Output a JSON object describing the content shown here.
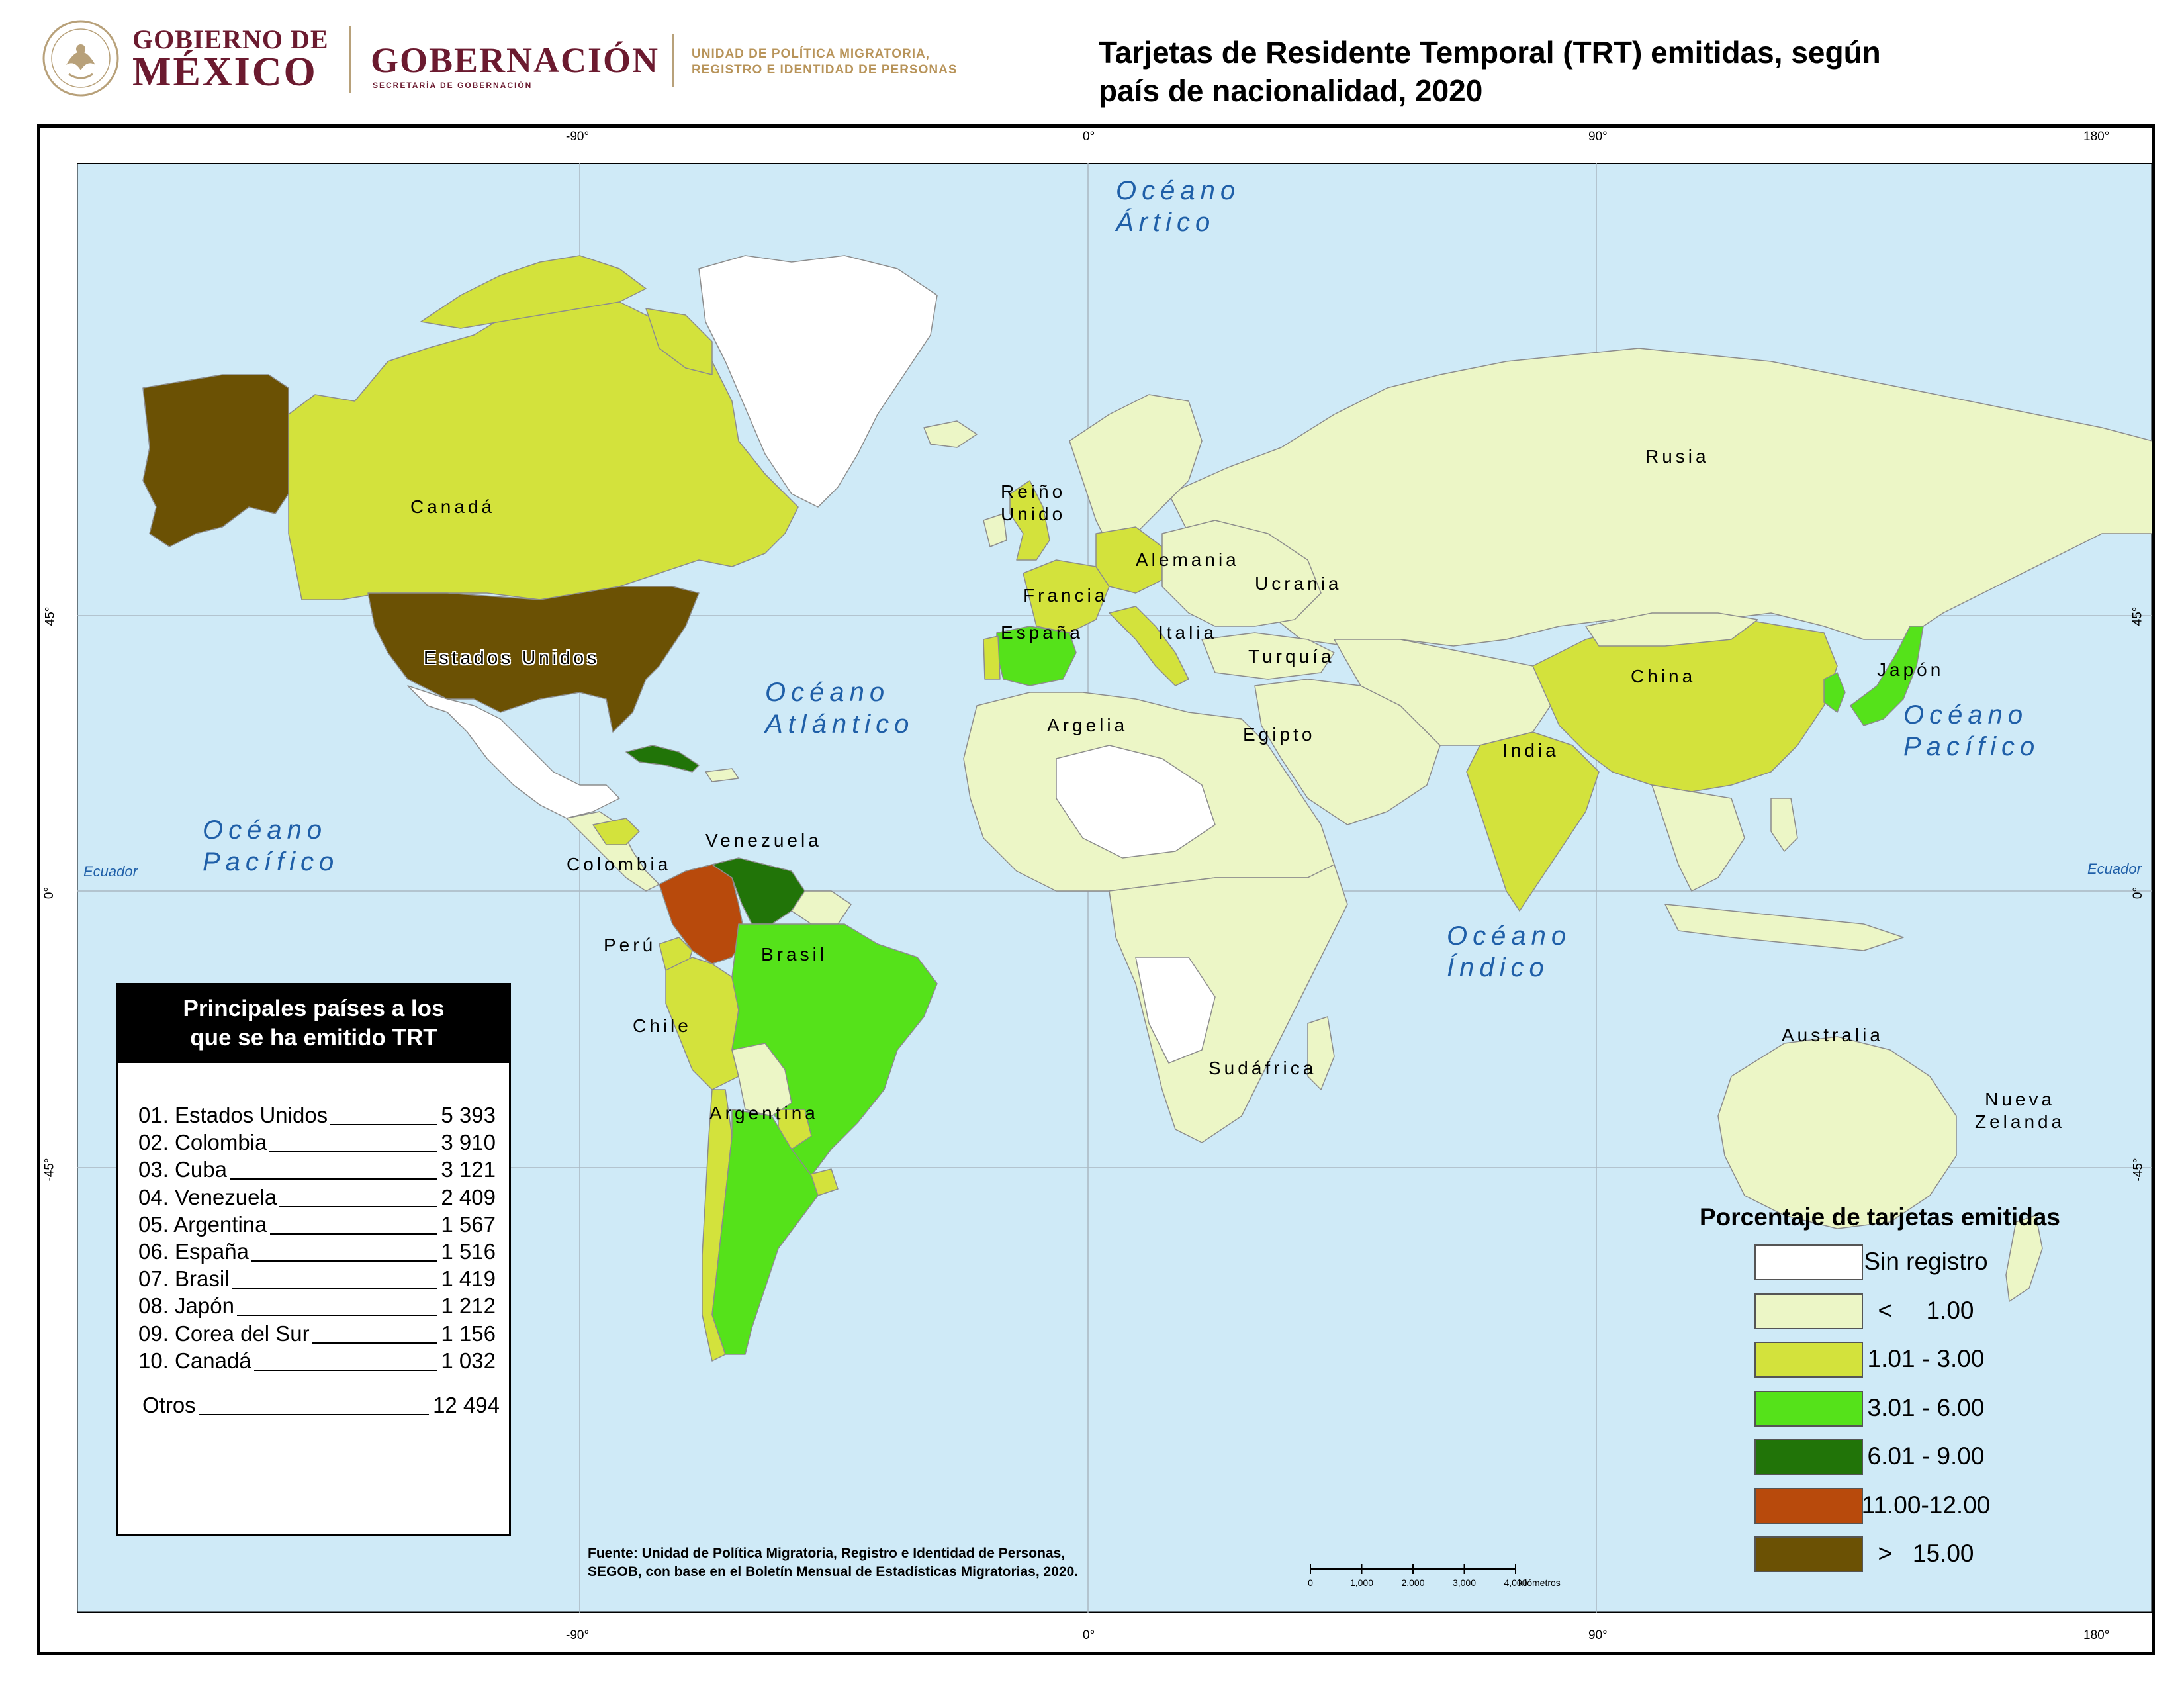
{
  "header": {
    "gob_line1": "GOBIERNO DE",
    "gob_line2": "MÉXICO",
    "gobernacion": "GOBERNACIÓN",
    "gobernacion_sub": "SECRETARÍA DE GOBERNACIÓN",
    "unidad_line1": "UNIDAD DE POLÍTICA MIGRATORIA,",
    "unidad_line2": "REGISTRO E IDENTIDAD DE PERSONAS",
    "title_line1": "Tarjetas de Residente Temporal (TRT) emitidas, según",
    "title_line2": "país de nacionalidad, 2020"
  },
  "graticule": {
    "top_ticks": [
      "-90°",
      "0°",
      "90°",
      "180°"
    ],
    "bottom_ticks": [
      "-90°",
      "0°",
      "90°",
      "180°"
    ],
    "left_ticks": [
      "45°",
      "0°",
      "-45°"
    ],
    "right_ticks": [
      "45°",
      "0°",
      "-45°"
    ],
    "ecuador": "Ecuador"
  },
  "oceans": {
    "artico": [
      "Océano",
      "Ártico"
    ],
    "atlantico": [
      "Océano",
      "Atlántico"
    ],
    "pacifico_w": [
      "Océano",
      "Pacífico"
    ],
    "pacifico_e": [
      "Océano",
      "Pacífico"
    ],
    "indico": [
      "Océano",
      "Índico"
    ]
  },
  "countries": {
    "canada": "Canadá",
    "estados_unidos": "Estados Unidos",
    "reino_unido_1": "Reiño",
    "reino_unido_2": "Unido",
    "alemania": "Alemania",
    "francia": "Francia",
    "espana": "España",
    "italia": "Italia",
    "ucrania": "Ucrania",
    "turquia": "Turquía",
    "rusia": "Rusia",
    "china": "China",
    "japon": "Japón",
    "india": "India",
    "egipto": "Egipto",
    "argelia": "Argelia",
    "venezuela": "Venezuela",
    "colombia": "Colombia",
    "peru": "Perú",
    "brasil": "Brasil",
    "chile": "Chile",
    "argentina": "Argentina",
    "sudafrica": "Sudáfrica",
    "australia": "Australia",
    "nueva_zelanda_1": "Nueva",
    "nueva_zelanda_2": "Zelanda"
  },
  "ranking": {
    "title_line1": "Principales países a los",
    "title_line2": "que se ha emitido TRT",
    "rows": [
      {
        "name": "01. Estados Unidos",
        "value": "5 393"
      },
      {
        "name": "02. Colombia",
        "value": "3 910"
      },
      {
        "name": "03. Cuba",
        "value": "3 121"
      },
      {
        "name": "04. Venezuela",
        "value": "2 409"
      },
      {
        "name": "05. Argentina",
        "value": "1 567"
      },
      {
        "name": "06. España",
        "value": "1 516"
      },
      {
        "name": "07. Brasil",
        "value": "1 419"
      },
      {
        "name": "08. Japón",
        "value": "1 212"
      },
      {
        "name": "09. Corea del Sur",
        "value": "1 156"
      },
      {
        "name": "10. Canadá",
        "value": "1 032"
      }
    ],
    "otros": {
      "name": "Otros",
      "value": "12 494"
    }
  },
  "legend": {
    "title": "Porcentaje de tarjetas emitidas",
    "classes": [
      {
        "label": "Sin registro",
        "color": "#ffffff"
      },
      {
        "label": "<     1.00",
        "color": "#ecf6c6"
      },
      {
        "label": "1.01 - 3.00",
        "color": "#d3e23c"
      },
      {
        "label": "3.01 - 6.00",
        "color": "#55e21a"
      },
      {
        "label": "6.01 - 9.00",
        "color": "#217408"
      },
      {
        "label": "11.00-12.00",
        "color": "#b84a0c"
      },
      {
        "label": ">   15.00",
        "color": "#6b5104"
      }
    ]
  },
  "colors": {
    "ocean": "#cfeaf7",
    "land_default": "#ecf6c6",
    "border": "#8c8c8c",
    "ocean_label": "#1f5fa8"
  },
  "source": {
    "line1": "Fuente: Unidad de Política Migratoria, Registro e Identidad de Personas,",
    "line2": "SEGOB, con base en el Boletín Mensual de Estadísticas Migratorias, 2020."
  },
  "scalebar": {
    "ticks": [
      "0",
      "1,000",
      "2,000",
      "3,000",
      "4,000"
    ],
    "unit": "kilómetros"
  }
}
